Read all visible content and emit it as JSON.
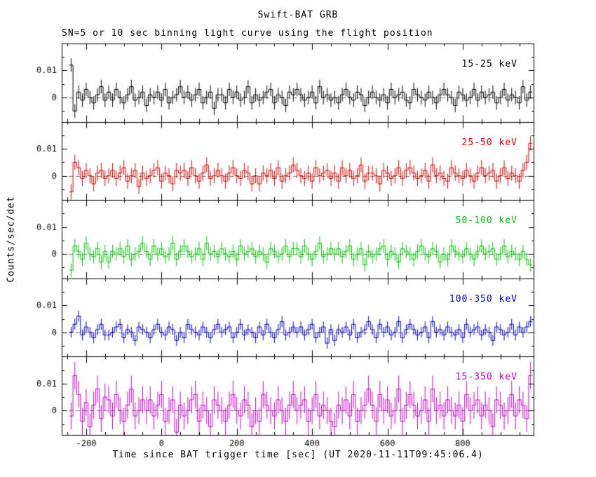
{
  "title": "Swift-BAT GRB",
  "subtitle": "SN=5 or 10 sec binning light curve using the flight position",
  "xlabel": "Time since BAT trigger time [sec] (UT 2020-11-11T09:45:06.4)",
  "ylabel": "Counts/sec/det",
  "axes": {
    "xlim": [
      -265,
      990
    ],
    "ylim_milli": [
      -9,
      20
    ],
    "scale": 0.001,
    "x": {
      "start": -240,
      "step": 10,
      "count": 123
    },
    "xticks_major": [
      -200,
      0,
      200,
      400,
      600,
      800
    ],
    "xtick_labels": [
      "-200",
      "0",
      "200",
      "400",
      "600",
      "800"
    ],
    "xticks_minor_step": 50,
    "yticks_major_milli": [
      0,
      10
    ],
    "ytick_labels": [
      "0",
      "0.01"
    ],
    "yticks_minor_milli": [
      -5,
      0,
      5,
      10,
      15
    ],
    "zero_line": {
      "style": "dashed",
      "color": "#777777"
    }
  },
  "chart_data": [
    {
      "type": "line",
      "name": "15-25 keV",
      "color": "#000000",
      "err_milli": 2.5,
      "values_milli": [
        12,
        -5,
        2,
        -1,
        3,
        0,
        -2,
        1,
        4,
        -1,
        2,
        -1,
        3,
        0,
        -2,
        1,
        4,
        -1,
        0,
        2,
        -3,
        1,
        0,
        2,
        -1,
        3,
        -2,
        0,
        1,
        4,
        0,
        2,
        -1,
        1,
        3,
        -2,
        0,
        2,
        -4,
        1,
        1,
        -2,
        3,
        0,
        2,
        -1,
        0,
        4,
        -2,
        1,
        -1,
        0,
        2,
        3,
        -2,
        1,
        0,
        -3,
        2,
        1,
        3,
        1,
        -1,
        0,
        2,
        -2,
        4,
        0,
        1,
        -1,
        0,
        -2,
        1,
        3,
        0,
        -1,
        2,
        1,
        -3,
        0,
        2,
        0,
        -1,
        1,
        -2,
        3,
        0,
        1,
        2,
        -1,
        -2,
        3,
        1,
        0,
        -1,
        2,
        0,
        -2,
        1,
        3,
        1,
        0,
        -3,
        2,
        1,
        -1,
        0,
        3,
        -1,
        2,
        0,
        1,
        2,
        -2,
        0,
        3,
        -1,
        1,
        0,
        -2,
        4,
        -1,
        2
      ]
    },
    {
      "type": "line",
      "name": "25-50 keV",
      "color": "#dd0000",
      "err_milli": 2.8,
      "values_milli": [
        -6,
        5,
        3,
        -1,
        2,
        0,
        -3,
        1,
        2,
        -1,
        0,
        2,
        -1,
        1,
        3,
        -2,
        0,
        2,
        -4,
        1,
        -1,
        0,
        2,
        3,
        -2,
        1,
        0,
        -3,
        2,
        1,
        2,
        -1,
        3,
        0,
        -2,
        1,
        4,
        -1,
        0,
        2,
        0,
        -2,
        1,
        3,
        0,
        -1,
        2,
        1,
        -3,
        0,
        -3,
        1,
        0,
        2,
        -1,
        3,
        -2,
        0,
        1,
        4,
        2,
        0,
        -1,
        1,
        -2,
        3,
        0,
        1,
        2,
        -1,
        1,
        -2,
        3,
        0,
        2,
        -1,
        0,
        4,
        -2,
        1,
        1,
        0,
        -3,
        2,
        1,
        -1,
        0,
        3,
        -1,
        2,
        3,
        1,
        -1,
        0,
        2,
        -2,
        4,
        0,
        1,
        -1,
        -2,
        3,
        1,
        0,
        -1,
        2,
        0,
        -2,
        1,
        3,
        0,
        1,
        2,
        -2,
        0,
        3,
        -1,
        1,
        0,
        -2,
        2,
        5,
        12
      ]
    },
    {
      "type": "line",
      "name": "50-100 keV",
      "color": "#00c800",
      "err_milli": 2.5,
      "values_milli": [
        -6,
        3,
        1,
        -2,
        4,
        0,
        -1,
        2,
        -3,
        1,
        -3,
        1,
        0,
        2,
        -1,
        3,
        -2,
        0,
        1,
        4,
        1,
        -2,
        3,
        0,
        2,
        -1,
        0,
        4,
        -2,
        1,
        3,
        1,
        -1,
        0,
        2,
        -2,
        4,
        0,
        1,
        -1,
        2,
        0,
        -1,
        1,
        -2,
        3,
        0,
        1,
        2,
        -1,
        1,
        0,
        -3,
        2,
        1,
        -1,
        0,
        3,
        -1,
        2,
        2,
        -1,
        3,
        0,
        -2,
        1,
        4,
        -1,
        0,
        2,
        0,
        2,
        -1,
        1,
        3,
        -2,
        0,
        2,
        -4,
        1,
        -1,
        0,
        2,
        3,
        -2,
        1,
        0,
        -3,
        2,
        1,
        0,
        -2,
        1,
        3,
        0,
        -1,
        2,
        1,
        -3,
        0,
        -2,
        3,
        1,
        0,
        -1,
        2,
        0,
        -2,
        1,
        3,
        0,
        1,
        2,
        -2,
        0,
        3,
        -1,
        1,
        0,
        -2,
        1,
        -2,
        -4
      ]
    },
    {
      "type": "line",
      "name": "100-350 keV",
      "color": "#0000cc",
      "err_milli": 2.0,
      "values_milli": [
        0,
        3,
        6,
        -1,
        2,
        0,
        -2,
        1,
        3,
        -1,
        -1,
        0,
        2,
        3,
        -2,
        1,
        0,
        -3,
        2,
        1,
        0,
        -2,
        1,
        3,
        0,
        -1,
        2,
        1,
        -3,
        0,
        -2,
        3,
        1,
        0,
        -1,
        2,
        0,
        -2,
        1,
        3,
        0,
        1,
        2,
        -2,
        0,
        3,
        -1,
        1,
        0,
        -2,
        2,
        -1,
        3,
        0,
        -2,
        1,
        4,
        -1,
        0,
        2,
        0,
        2,
        -1,
        1,
        3,
        -2,
        0,
        2,
        -4,
        1,
        -3,
        1,
        0,
        2,
        -1,
        3,
        -2,
        0,
        1,
        4,
        1,
        -2,
        3,
        0,
        2,
        -1,
        0,
        4,
        -2,
        1,
        3,
        1,
        -1,
        0,
        2,
        -2,
        4,
        0,
        1,
        -1,
        2,
        0,
        -1,
        1,
        -2,
        3,
        0,
        1,
        2,
        -1,
        1,
        0,
        -3,
        2,
        1,
        -1,
        0,
        3,
        -1,
        2,
        0,
        2,
        4
      ]
    },
    {
      "type": "line",
      "name": "15-350 keV",
      "color": "#cc00cc",
      "err_milli": 5.0,
      "values_milli": [
        -2,
        13,
        6,
        -4,
        3,
        -6,
        2,
        8,
        -3,
        5,
        4,
        -2,
        6,
        0,
        -4,
        2,
        8,
        -2,
        0,
        4,
        0,
        4,
        -2,
        2,
        6,
        -4,
        0,
        4,
        -8,
        2,
        -2,
        0,
        4,
        6,
        -4,
        2,
        0,
        -6,
        4,
        2,
        0,
        -4,
        2,
        6,
        0,
        -2,
        4,
        2,
        -6,
        0,
        -4,
        6,
        2,
        0,
        -2,
        4,
        0,
        -4,
        2,
        6,
        0,
        2,
        4,
        -4,
        0,
        6,
        -2,
        2,
        0,
        -4,
        -6,
        2,
        0,
        4,
        -2,
        6,
        -4,
        0,
        2,
        8,
        2,
        -4,
        6,
        0,
        4,
        -2,
        0,
        8,
        -4,
        2,
        6,
        2,
        -2,
        0,
        4,
        -4,
        8,
        0,
        2,
        -2,
        4,
        0,
        -2,
        2,
        -4,
        6,
        0,
        2,
        4,
        -2,
        2,
        0,
        -6,
        4,
        2,
        -2,
        0,
        6,
        -2,
        4,
        2,
        -3,
        13
      ]
    }
  ]
}
